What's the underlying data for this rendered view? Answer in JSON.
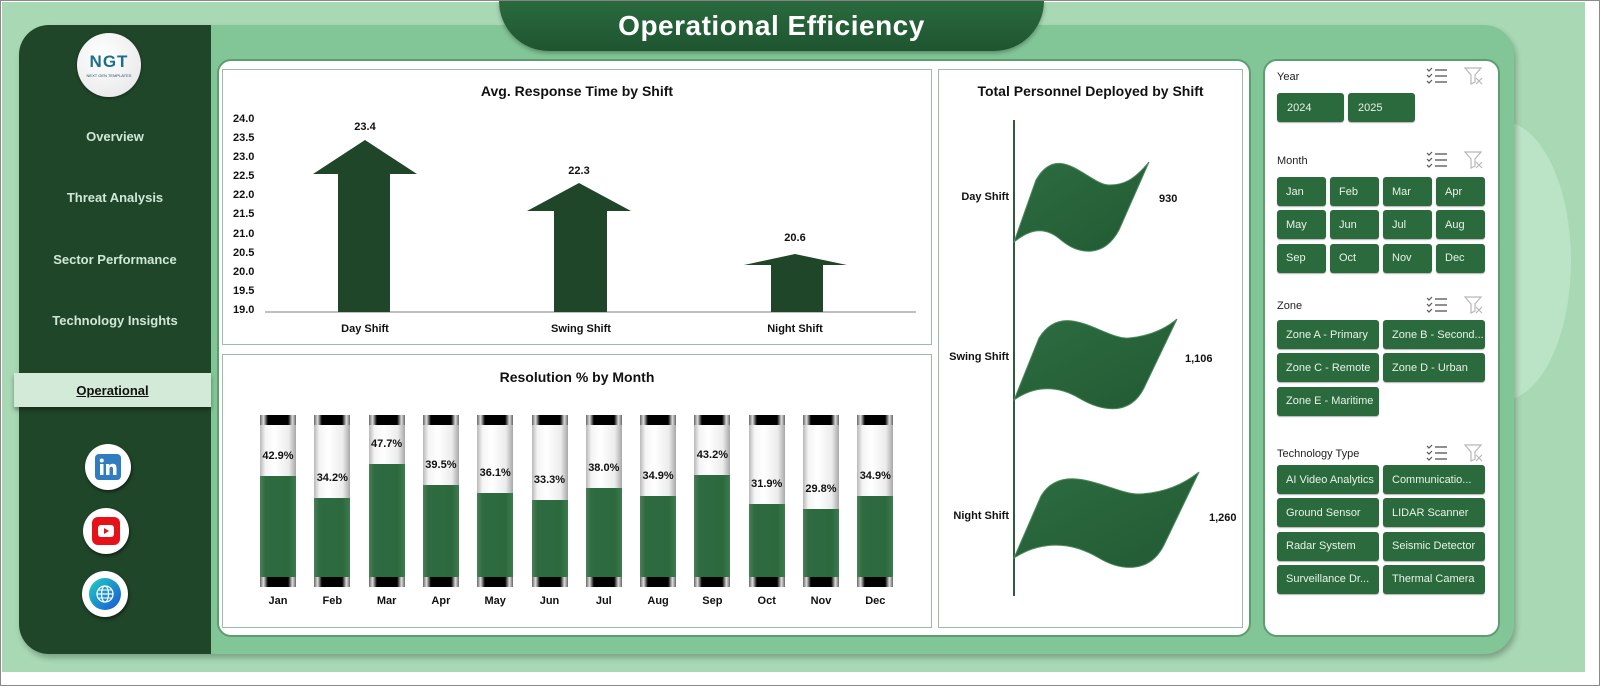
{
  "header": {
    "title": "Operational Efficiency"
  },
  "logo": {
    "text": "NGT",
    "subtext": "NEXT GEN TEMPLATES"
  },
  "sidebar": {
    "items": [
      {
        "label": "Overview",
        "active": false
      },
      {
        "label": "Threat Analysis",
        "active": false
      },
      {
        "label": "Sector Performance",
        "active": false
      },
      {
        "label": "Technology Insights",
        "active": false
      },
      {
        "label": "Operational",
        "active": true
      }
    ],
    "social": [
      {
        "name": "linkedin-icon",
        "color": "#2f7cc0"
      },
      {
        "name": "youtube-icon",
        "color": "#e5121a"
      },
      {
        "name": "globe-icon",
        "color": "#1a7fd0"
      }
    ]
  },
  "filters": {
    "year": {
      "title": "Year",
      "options": [
        "2024",
        "2025"
      ]
    },
    "month": {
      "title": "Month",
      "options": [
        "Jan",
        "Feb",
        "Mar",
        "Apr",
        "May",
        "Jun",
        "Jul",
        "Aug",
        "Sep",
        "Oct",
        "Nov",
        "Dec"
      ]
    },
    "zone": {
      "title": "Zone",
      "options": [
        "Zone A - Primary",
        "Zone B - Second...",
        "Zone C - Remote",
        "Zone D - Urban",
        "Zone E - Maritime"
      ]
    },
    "technology": {
      "title": "Technology Type",
      "options": [
        "AI Video Analytics",
        "Communicatio...",
        "Ground Sensor",
        "LIDAR Scanner",
        "Radar System",
        "Seismic Detector",
        "Surveillance Dr...",
        "Thermal Camera"
      ]
    }
  },
  "colors": {
    "dark_green": "#20462a",
    "accent_green": "#2b6a3d",
    "light_green": "#82c596",
    "bg_green": "#a8d8b4"
  },
  "chart_data": [
    {
      "type": "bar",
      "title": "Avg. Response Time by Shift",
      "categories": [
        "Day Shift",
        "Swing Shift",
        "Night Shift"
      ],
      "values": [
        23.4,
        22.3,
        20.6
      ],
      "value_labels": [
        "23.4",
        "22.3",
        "20.6"
      ],
      "yticks": [
        "24.0",
        "23.5",
        "23.0",
        "22.5",
        "22.0",
        "21.5",
        "21.0",
        "20.5",
        "20.0",
        "19.5",
        "19.0"
      ],
      "ylim": [
        19.0,
        24.0
      ],
      "xlabel": "",
      "ylabel": "",
      "grid": false,
      "legend": "none"
    },
    {
      "type": "bar",
      "title": "Resolution % by Month",
      "categories": [
        "Jan",
        "Feb",
        "Mar",
        "Apr",
        "May",
        "Jun",
        "Jul",
        "Aug",
        "Sep",
        "Oct",
        "Nov",
        "Dec"
      ],
      "values": [
        42.9,
        34.2,
        47.7,
        39.5,
        36.1,
        33.3,
        38.0,
        34.9,
        43.2,
        31.9,
        29.8,
        34.9
      ],
      "value_labels": [
        "42.9%",
        "34.2%",
        "47.7%",
        "39.5%",
        "36.1%",
        "33.3%",
        "38.0%",
        "34.9%",
        "43.2%",
        "31.9%",
        "29.8%",
        "34.9%"
      ],
      "ylim": [
        0,
        100
      ],
      "grid": false,
      "legend": "none"
    },
    {
      "type": "bar",
      "orientation": "horizontal",
      "title": "Total Personnel Deployed by Shift",
      "categories": [
        "Day Shift",
        "Swing Shift",
        "Night Shift"
      ],
      "values": [
        930,
        1106,
        1260
      ],
      "value_labels": [
        "930",
        "1,106",
        "1,260"
      ],
      "grid": false,
      "legend": "none"
    }
  ]
}
